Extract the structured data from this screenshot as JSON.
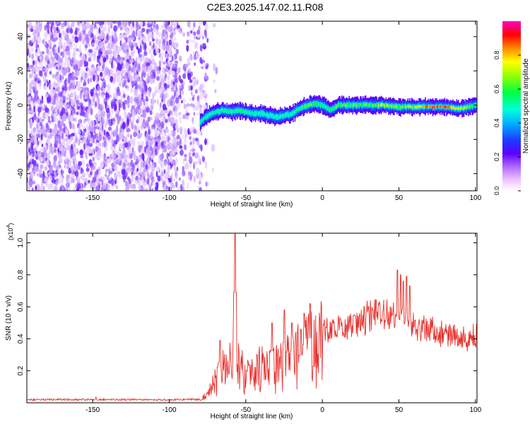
{
  "figure": {
    "title": "C2E3.2025.147.02.11.R08"
  },
  "colors": {
    "snr_line": "#e8302c",
    "spectrogram_low": "#9b59ff",
    "ridge_high": "#ff1a1a"
  },
  "chart_data": [
    {
      "type": "heatmap",
      "xlabel": "Height of straight line (km)",
      "ylabel": "Frequency (Hz)",
      "xlim": [
        -193,
        101
      ],
      "ylim": [
        -50,
        49
      ],
      "xticks": [
        -150,
        -100,
        -50,
        0,
        50,
        100
      ],
      "yticks": [
        -40,
        -20,
        0,
        20,
        40
      ],
      "colorbar": {
        "label": "Normalized spectral amplitude",
        "range": [
          0,
          1
        ],
        "ticks": [
          0,
          0.2,
          0.4,
          0.6,
          0.8
        ],
        "tick_labels": [
          "0.0",
          "0.2",
          "0.4",
          "0.6",
          "0.8"
        ],
        "colormap": "white-magenta-blue-cyan-green-yellow-red-magenta"
      },
      "noise_region": {
        "x": [
          -193,
          -75
        ],
        "y": [
          -50,
          49
        ],
        "amplitude": [
          0.0,
          0.2
        ]
      },
      "ridge": {
        "x": [
          -80,
          -75,
          -70,
          -65,
          -60,
          -55,
          -50,
          -45,
          -40,
          -35,
          -30,
          -25,
          -20,
          -15,
          -10,
          -5,
          0,
          5,
          10,
          20,
          30,
          40,
          50,
          60,
          70,
          80,
          90,
          100
        ],
        "y": [
          -10,
          -6,
          -4,
          -3,
          -4,
          -3,
          -4,
          -5,
          -5,
          -6,
          -7,
          -6,
          -5,
          -2,
          0,
          1,
          0,
          -3,
          0,
          0,
          0,
          0,
          -1,
          -1,
          -1,
          -1,
          -2,
          0
        ],
        "amplitude": [
          0.25,
          0.4,
          0.5,
          0.55,
          0.5,
          0.55,
          0.5,
          0.5,
          0.45,
          0.4,
          0.4,
          0.45,
          0.5,
          0.55,
          0.6,
          0.6,
          0.5,
          0.6,
          0.6,
          0.6,
          0.6,
          0.7,
          0.6,
          0.7,
          0.85,
          0.9,
          0.7,
          0.6
        ]
      }
    },
    {
      "type": "line",
      "xlabel": "Height of straight line (km)",
      "ylabel": "SNR (10 * v/v)",
      "y_multiplier_label": "(x10",
      "y_multiplier_exp": "4",
      "y_multiplier_close": ")",
      "xlim": [
        -193,
        101
      ],
      "ylim": [
        0,
        1.06
      ],
      "xticks": [
        -150,
        -100,
        -50,
        0,
        50,
        100
      ],
      "yticks": [
        0.2,
        0.4,
        0.6,
        0.8,
        1.0
      ],
      "ytick_labels": [
        "0.2",
        "0.4",
        "0.6",
        "0.8",
        "1.0"
      ],
      "baseline": {
        "x_from": -193,
        "x_to": -78,
        "level": 0.02
      },
      "envelope": {
        "x": [
          -78,
          -74,
          -70,
          -66,
          -62,
          -60,
          -58,
          -56,
          -54,
          -50,
          -45,
          -40,
          -35,
          -30,
          -25,
          -20,
          -15,
          -10,
          -5,
          0,
          5,
          10,
          15,
          20,
          25,
          30,
          35,
          40,
          45,
          50,
          55,
          60,
          65,
          70,
          75,
          80,
          85,
          90,
          95,
          100
        ],
        "y": [
          0.03,
          0.07,
          0.14,
          0.2,
          0.25,
          0.28,
          0.3,
          0.27,
          0.25,
          0.2,
          0.22,
          0.23,
          0.24,
          0.25,
          0.28,
          0.3,
          0.33,
          0.35,
          0.4,
          0.44,
          0.46,
          0.47,
          0.49,
          0.5,
          0.52,
          0.53,
          0.55,
          0.56,
          0.54,
          0.52,
          0.5,
          0.48,
          0.46,
          0.45,
          0.45,
          0.44,
          0.43,
          0.42,
          0.41,
          0.4
        ]
      },
      "peaks": [
        {
          "x": -57,
          "y": 1.06
        },
        {
          "x": -67,
          "y": 0.39
        },
        {
          "x": -33,
          "y": 0.5
        },
        {
          "x": -25,
          "y": 0.58
        },
        {
          "x": -20,
          "y": 0.5
        },
        {
          "x": -14,
          "y": 0.46
        },
        {
          "x": -12,
          "y": 0.56
        },
        {
          "x": -8,
          "y": 0.62
        },
        {
          "x": 49,
          "y": 0.83
        },
        {
          "x": 51,
          "y": 0.8
        },
        {
          "x": 53,
          "y": 0.76
        },
        {
          "x": 55,
          "y": 0.79
        },
        {
          "x": 57,
          "y": 0.73
        }
      ]
    }
  ]
}
